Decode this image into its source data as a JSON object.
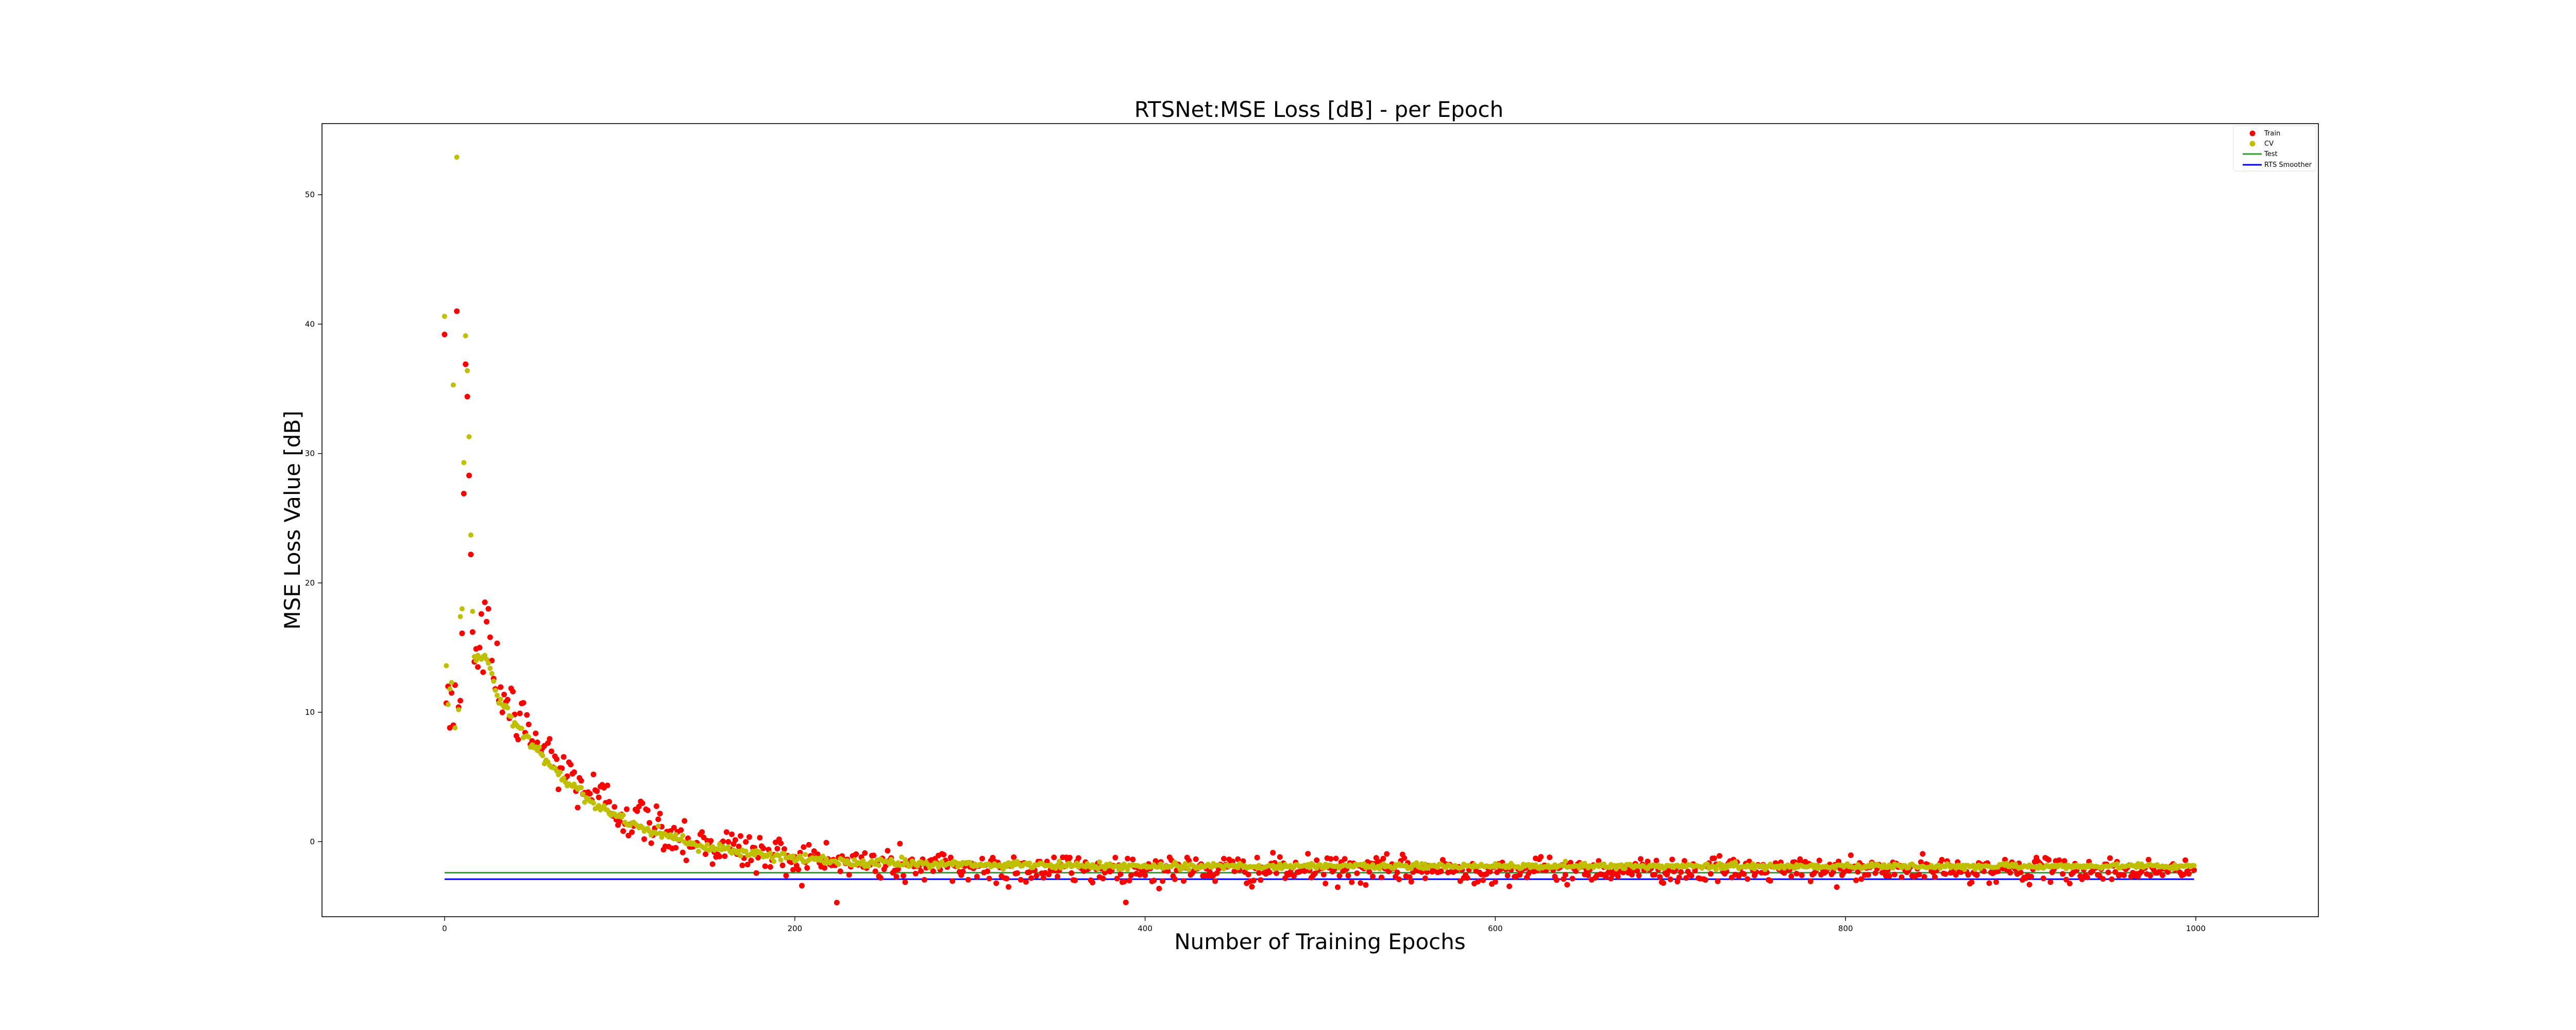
{
  "chart_data": {
    "type": "scatter",
    "title": "RTSNet:MSE Loss [dB] - per Epoch",
    "xlabel": "Number of Training Epochs",
    "ylabel": "MSE Loss Value [dB]",
    "xlim": [
      -70,
      1070
    ],
    "ylim": [
      -5.8,
      55.5
    ],
    "x_ticks": [
      0,
      200,
      400,
      600,
      800,
      1000
    ],
    "y_ticks": [
      0,
      10,
      20,
      30,
      40,
      50
    ],
    "grid": false,
    "legend_position": "top-right",
    "epochs": 1000,
    "colors": {
      "train": "#ff0000",
      "cv": "#bfbf00",
      "test": "#2ca02c",
      "rts": "#0000ff"
    },
    "series": [
      {
        "name": "Train",
        "kind": "markers",
        "early_points": [
          {
            "x": 0,
            "y": 39.2
          },
          {
            "x": 1,
            "y": 10.7
          },
          {
            "x": 2,
            "y": 12.0
          },
          {
            "x": 3,
            "y": 8.8
          },
          {
            "x": 4,
            "y": 11.5
          },
          {
            "x": 5,
            "y": 9.0
          },
          {
            "x": 6,
            "y": 12.1
          },
          {
            "x": 7,
            "y": 41.0
          },
          {
            "x": 8,
            "y": 10.4
          },
          {
            "x": 9,
            "y": 10.9
          },
          {
            "x": 10,
            "y": 16.1
          },
          {
            "x": 11,
            "y": 26.9
          },
          {
            "x": 12,
            "y": 36.9
          },
          {
            "x": 13,
            "y": 34.4
          },
          {
            "x": 14,
            "y": 28.3
          },
          {
            "x": 15,
            "y": 22.2
          },
          {
            "x": 16,
            "y": 16.2
          },
          {
            "x": 17,
            "y": 13.9
          },
          {
            "x": 18,
            "y": 14.9
          },
          {
            "x": 19,
            "y": 13.5
          },
          {
            "x": 20,
            "y": 15.0
          },
          {
            "x": 21,
            "y": 17.6
          },
          {
            "x": 22,
            "y": 13.1
          },
          {
            "x": 23,
            "y": 18.5
          },
          {
            "x": 24,
            "y": 17.0
          },
          {
            "x": 25,
            "y": 18.0
          },
          {
            "x": 26,
            "y": 15.8
          },
          {
            "x": 27,
            "y": 14.0
          },
          {
            "x": 28,
            "y": 12.6
          },
          {
            "x": 29,
            "y": 11.8
          }
        ],
        "trend": {
          "start_epoch": 30,
          "y_start": 12.0,
          "tail": -2.2,
          "decay": 0.016,
          "noise": 1.2
        }
      },
      {
        "name": "CV",
        "kind": "markers",
        "early_points": [
          {
            "x": 0,
            "y": 40.6
          },
          {
            "x": 1,
            "y": 13.6
          },
          {
            "x": 2,
            "y": 10.6
          },
          {
            "x": 3,
            "y": 11.8
          },
          {
            "x": 4,
            "y": 12.3
          },
          {
            "x": 5,
            "y": 35.3
          },
          {
            "x": 6,
            "y": 8.8
          },
          {
            "x": 7,
            "y": 52.9
          },
          {
            "x": 8,
            "y": 10.2
          },
          {
            "x": 9,
            "y": 17.4
          },
          {
            "x": 10,
            "y": 18.0
          },
          {
            "x": 11,
            "y": 29.3
          },
          {
            "x": 12,
            "y": 39.1
          },
          {
            "x": 13,
            "y": 36.4
          },
          {
            "x": 14,
            "y": 31.3
          },
          {
            "x": 15,
            "y": 23.7
          },
          {
            "x": 16,
            "y": 17.8
          },
          {
            "x": 17,
            "y": 14.3
          },
          {
            "x": 18,
            "y": 14.0
          },
          {
            "x": 19,
            "y": 14.4
          },
          {
            "x": 20,
            "y": 14.2
          },
          {
            "x": 21,
            "y": 14.1
          },
          {
            "x": 22,
            "y": 14.3
          },
          {
            "x": 23,
            "y": 14.4
          },
          {
            "x": 24,
            "y": 14.1
          },
          {
            "x": 25,
            "y": 13.8
          },
          {
            "x": 26,
            "y": 13.4
          },
          {
            "x": 27,
            "y": 13.0
          },
          {
            "x": 28,
            "y": 12.4
          },
          {
            "x": 29,
            "y": 11.7
          }
        ],
        "trend": {
          "start_epoch": 30,
          "y_start": 11.5,
          "tail": -1.9,
          "decay": 0.018,
          "noise": 0.25
        }
      },
      {
        "name": "Test",
        "kind": "line",
        "value": -2.4
      },
      {
        "name": "RTS Smoother",
        "kind": "line",
        "value": -2.9
      }
    ]
  }
}
